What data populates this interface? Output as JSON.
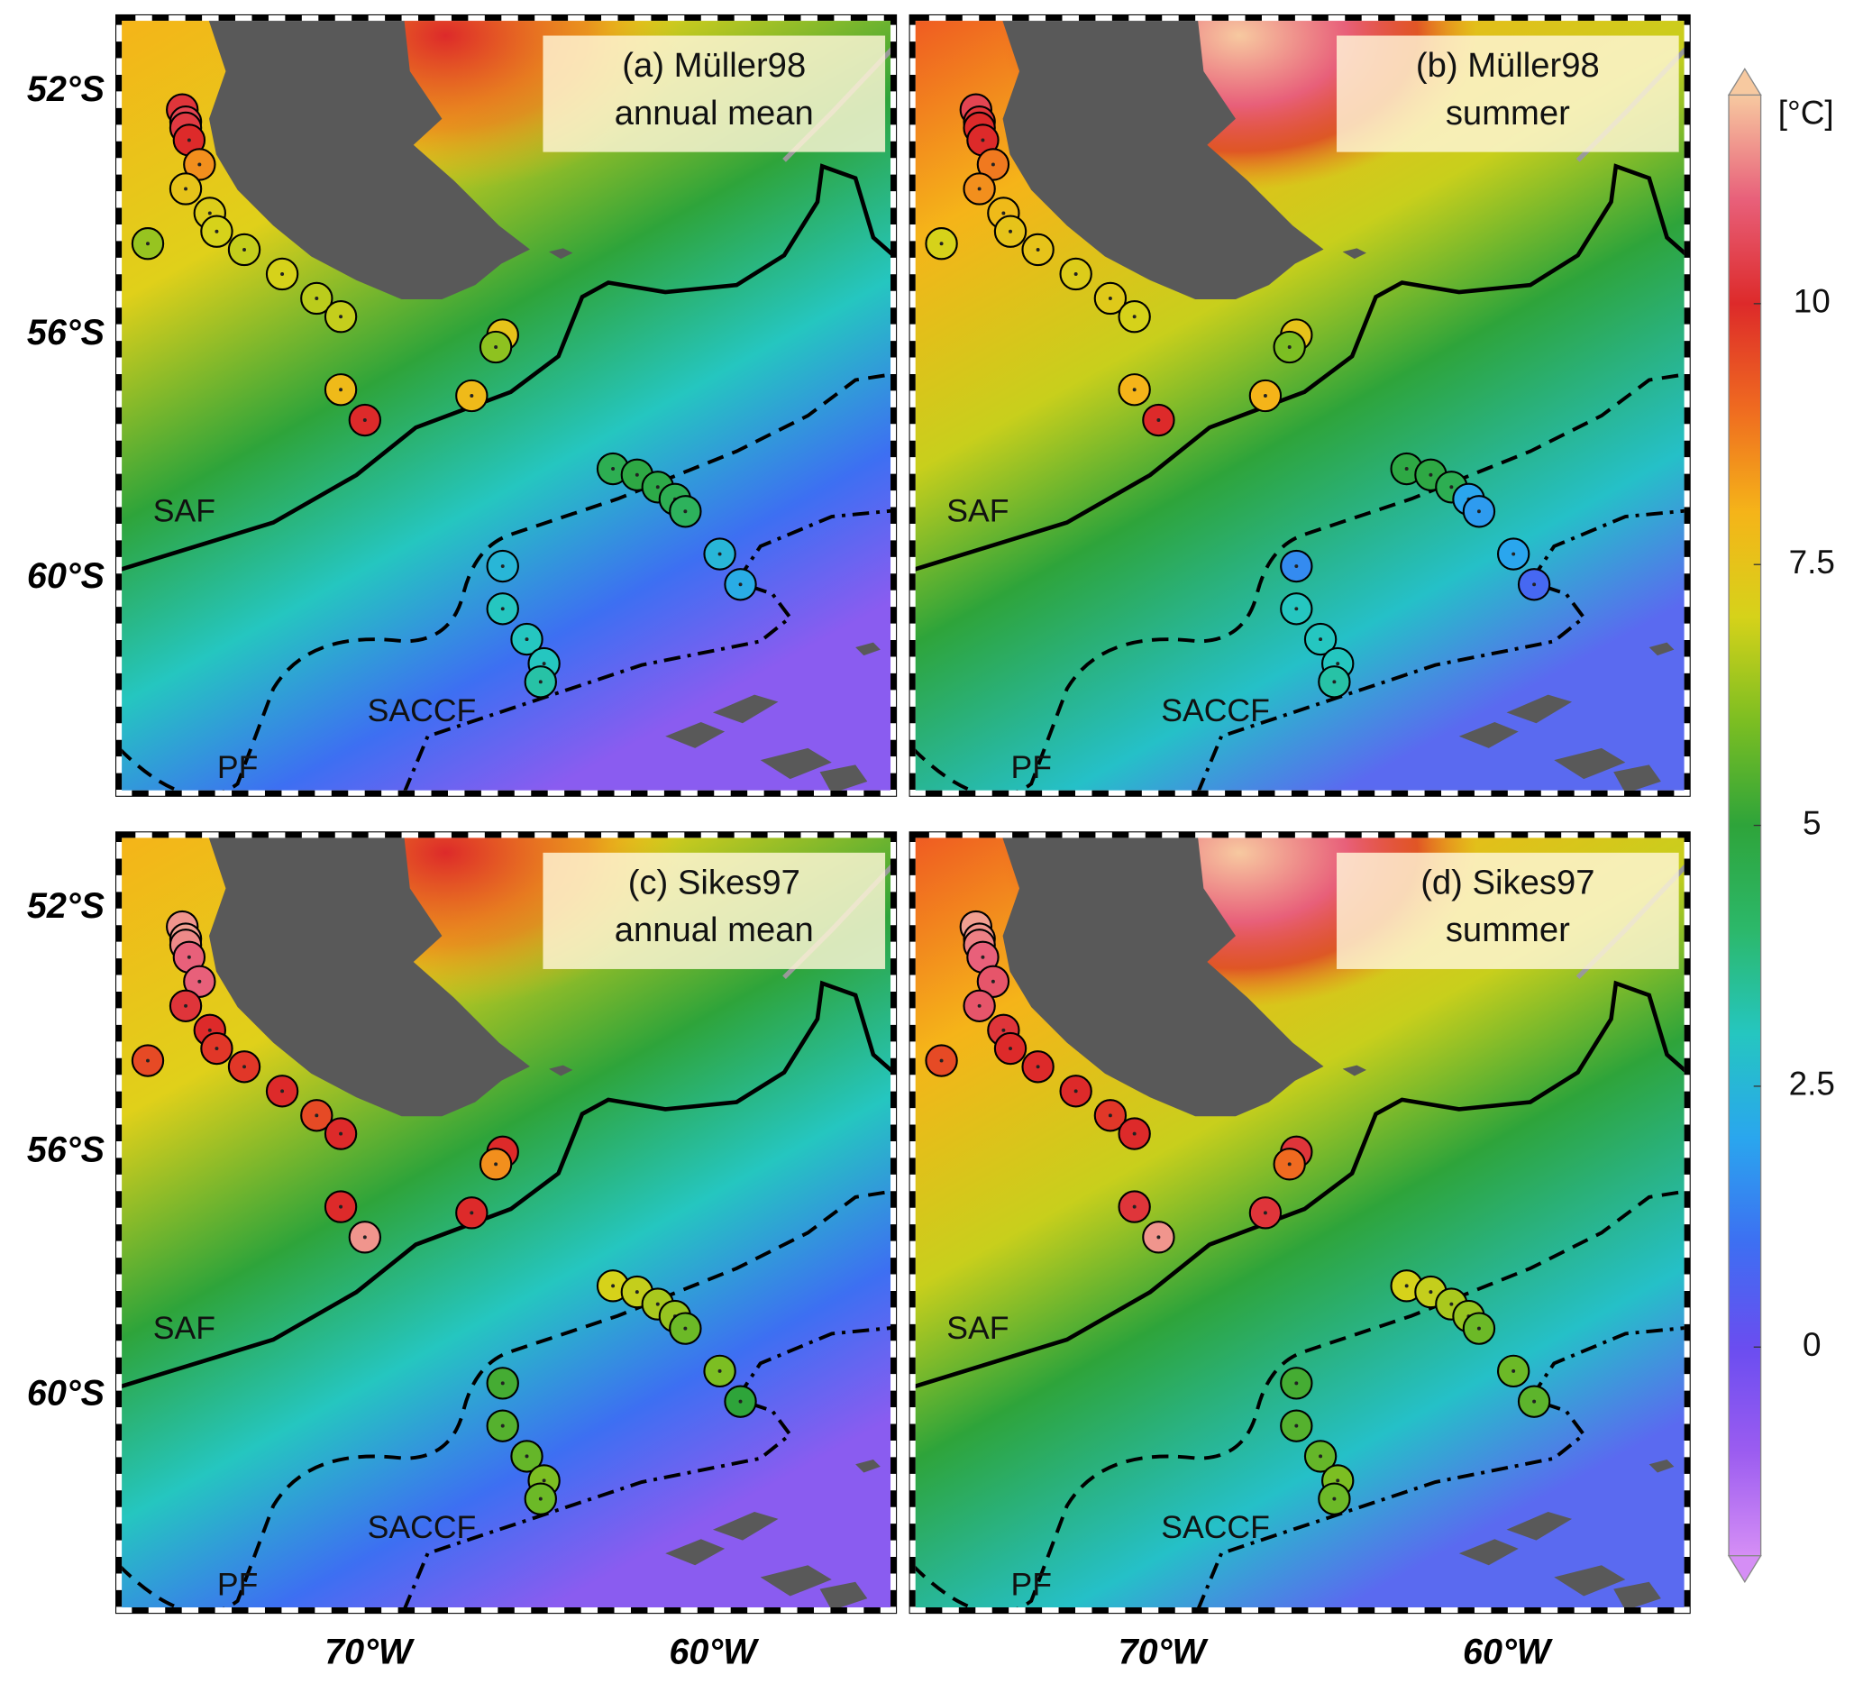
{
  "panels": [
    {
      "title": [
        "(a) Müller98",
        "annual mean"
      ],
      "values": [
        10.2,
        10.5,
        10.3,
        10.0,
        8.5,
        7.5,
        7.2,
        7.0,
        6.8,
        7.0,
        6.7,
        6.8,
        6.3,
        7.5,
        6.2,
        7.8,
        10.0,
        7.8,
        4.5,
        4.8,
        4.7,
        4.5,
        4.3,
        2.5,
        2.2,
        2.5,
        3.0,
        3.0,
        3.0,
        3.3
      ]
    },
    {
      "title": [
        "(b) Müller98",
        "summer"
      ],
      "values": [
        10.5,
        10.2,
        10.0,
        10.0,
        8.8,
        8.5,
        7.8,
        7.5,
        7.5,
        7.2,
        7.3,
        7.0,
        7.0,
        7.5,
        6.0,
        8.0,
        10.0,
        8.0,
        4.8,
        4.8,
        4.5,
        2.0,
        1.8,
        2.0,
        0.8,
        1.5,
        3.0,
        3.0,
        3.0,
        3.3
      ]
    },
    {
      "title": [
        "(c) Sikes97",
        "annual mean"
      ],
      "values": [
        11.5,
        11.6,
        11.4,
        11.0,
        11.0,
        10.2,
        10.0,
        9.8,
        9.8,
        10.0,
        9.5,
        10.0,
        9.5,
        10.0,
        8.5,
        10.0,
        11.5,
        10.0,
        7.0,
        6.8,
        6.5,
        6.3,
        5.8,
        6.0,
        5.0,
        5.3,
        5.5,
        5.7,
        6.0,
        5.8
      ]
    },
    {
      "title": [
        "(d) Sikes97",
        "summer"
      ],
      "values": [
        11.6,
        11.5,
        11.3,
        11.0,
        10.8,
        10.8,
        10.2,
        10.0,
        10.0,
        10.0,
        9.8,
        10.0,
        9.5,
        10.2,
        9.0,
        10.2,
        11.5,
        10.2,
        7.0,
        6.8,
        6.5,
        6.3,
        5.8,
        5.8,
        5.6,
        5.3,
        5.5,
        5.7,
        6.0,
        5.8
      ]
    }
  ],
  "sites": {
    "lon": [
      -75.4,
      -75.3,
      -75.3,
      -75.2,
      -74.9,
      -75.3,
      -74.6,
      -74.4,
      -73.6,
      -72.5,
      -71.5,
      -70.8,
      -76.4,
      -66.1,
      -66.3,
      -70.8,
      -70.1,
      -67.0,
      -62.9,
      -62.2,
      -61.6,
      -61.1,
      -60.8,
      -59.8,
      -59.2,
      -66.1,
      -66.1,
      -65.4,
      -64.9,
      -65.0
    ],
    "lat": [
      -52.3,
      -52.5,
      -52.6,
      -52.8,
      -53.2,
      -53.6,
      -54.0,
      -54.3,
      -54.6,
      -55.0,
      -55.4,
      -55.7,
      -54.5,
      -56.0,
      -56.2,
      -56.9,
      -57.4,
      -57.0,
      -58.2,
      -58.3,
      -58.5,
      -58.7,
      -58.9,
      -59.6,
      -60.1,
      -59.8,
      -60.5,
      -61.0,
      -61.4,
      -61.7
    ]
  },
  "fronts": [
    "SAF",
    "PF",
    "SACCF"
  ],
  "lat_ticks": [
    {
      "value": -52,
      "label": "52°S"
    },
    {
      "value": -56,
      "label": "56°S"
    },
    {
      "value": -60,
      "label": "60°S"
    }
  ],
  "lon_ticks": [
    {
      "value": -70,
      "label": "70°W"
    },
    {
      "value": -60,
      "label": "60°W"
    }
  ],
  "colorbar": {
    "label": "[°C]",
    "lim": [
      -2,
      12
    ],
    "ticks": [
      0,
      2.5,
      5,
      7.5,
      10
    ],
    "colors": [
      "#d58ef5",
      "#9b5cf0",
      "#6a4df0",
      "#3d6ff2",
      "#2aa6ee",
      "#25c6c0",
      "#2cb86a",
      "#2ea43a",
      "#7cbe22",
      "#d6d21a",
      "#f5b419",
      "#ef6a20",
      "#dd2a2a",
      "#e8607a",
      "#f7c9a0"
    ]
  }
}
